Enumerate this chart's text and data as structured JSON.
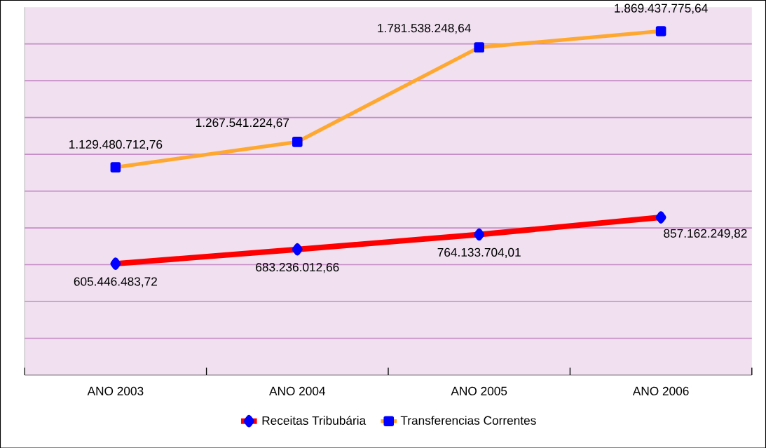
{
  "chart_data": {
    "type": "line",
    "categories": [
      "ANO 2003",
      "ANO 2004",
      "ANO 2005",
      "ANO 2006"
    ],
    "series": [
      {
        "name": "Receitas Tribubária",
        "color": "#ff0000",
        "marker": "diamond",
        "values": [
          605446483.72,
          683236012.66,
          764133704.01,
          857162249.82
        ],
        "value_labels": [
          "605.446.483,72",
          "683.236.012,66",
          "764.133.704,01",
          "857.162.249,82"
        ]
      },
      {
        "name": "Transferencias Correntes",
        "color": "#ffa830",
        "marker": "square",
        "values": [
          1129480712.76,
          1267541224.67,
          1781538248.64,
          1869437775.64
        ],
        "value_labels": [
          "1.129.480.712,76",
          "1.267.541.224,67",
          "1.781.538.248,64",
          "1.869.437.775,64"
        ]
      }
    ],
    "ylim": [
      0,
      2000000000
    ],
    "yticks": [
      {
        "value": 200000000,
        "label": null
      },
      {
        "value": 400000000,
        "label": null
      },
      {
        "value": 600000000,
        "label": null
      },
      {
        "value": 800000000,
        "label": null
      },
      {
        "value": 1000000000,
        "label": null
      },
      {
        "value": 1200000000,
        "label": null
      },
      {
        "value": 1400000000,
        "label": null
      },
      {
        "value": 1600000000,
        "label": null
      },
      {
        "value": 1800000000,
        "label": null
      }
    ],
    "tick_labels": "x",
    "grid": "y",
    "legend": "bottom"
  }
}
